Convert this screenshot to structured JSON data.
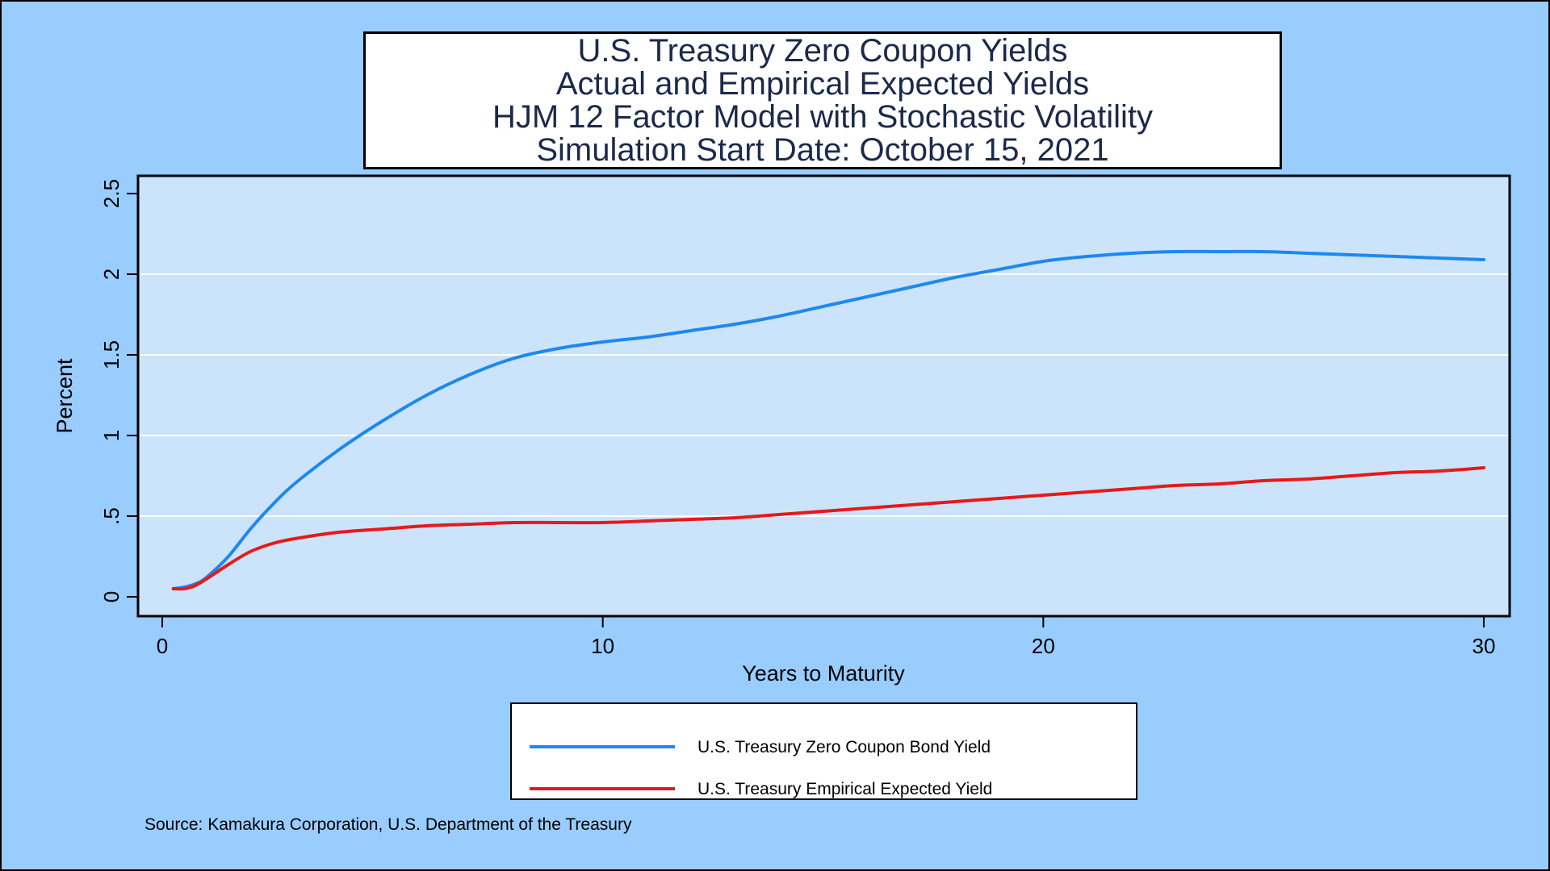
{
  "chart_data": {
    "type": "line",
    "title_lines": [
      "U.S. Treasury Zero Coupon Yields",
      "Actual and Empirical Expected Yields",
      "HJM 12 Factor Model with Stochastic Volatility",
      "Simulation Start Date: October 15, 2021"
    ],
    "xlabel": "Years to Maturity",
    "ylabel": "Percent",
    "xlim": [
      0,
      30
    ],
    "ylim": [
      0,
      2.5
    ],
    "x_ticks": [
      0,
      10,
      20,
      30
    ],
    "x_tick_labels": [
      "0",
      "10",
      "20",
      "30"
    ],
    "y_ticks": [
      0,
      0.5,
      1,
      1.5,
      2,
      2.5
    ],
    "y_tick_labels": [
      "0",
      ".5",
      "1",
      "1.5",
      "2",
      "2.5"
    ],
    "grid": "horizontal",
    "legend_position": "bottom",
    "series": [
      {
        "name": "U.S. Treasury Zero Coupon Bond Yield",
        "color": "#1e88f0",
        "x": [
          0.25,
          0.5,
          0.75,
          1,
          1.5,
          2,
          2.5,
          3,
          4,
          5,
          6,
          7,
          8,
          9,
          10,
          11,
          12,
          13,
          14,
          15,
          16,
          17,
          18,
          19,
          20,
          21,
          22,
          23,
          24,
          25,
          26,
          27,
          28,
          29,
          30
        ],
        "values": [
          0.05,
          0.06,
          0.08,
          0.12,
          0.25,
          0.42,
          0.57,
          0.7,
          0.91,
          1.09,
          1.25,
          1.38,
          1.48,
          1.54,
          1.58,
          1.61,
          1.65,
          1.69,
          1.74,
          1.8,
          1.86,
          1.92,
          1.98,
          2.03,
          2.08,
          2.11,
          2.13,
          2.14,
          2.14,
          2.14,
          2.13,
          2.12,
          2.11,
          2.1,
          2.09
        ]
      },
      {
        "name": "U.S. Treasury Empirical Expected Yield",
        "color": "#e51a1a",
        "x": [
          0.25,
          0.5,
          0.75,
          1,
          1.5,
          2,
          2.5,
          3,
          4,
          5,
          6,
          7,
          8,
          9,
          10,
          11,
          12,
          13,
          14,
          15,
          16,
          17,
          18,
          19,
          20,
          21,
          22,
          23,
          24,
          25,
          26,
          27,
          28,
          29,
          30
        ],
        "values": [
          0.05,
          0.05,
          0.07,
          0.11,
          0.2,
          0.28,
          0.33,
          0.36,
          0.4,
          0.42,
          0.44,
          0.45,
          0.46,
          0.46,
          0.46,
          0.47,
          0.48,
          0.49,
          0.51,
          0.53,
          0.55,
          0.57,
          0.59,
          0.61,
          0.63,
          0.65,
          0.67,
          0.69,
          0.7,
          0.72,
          0.73,
          0.75,
          0.77,
          0.78,
          0.8
        ]
      }
    ],
    "source": "Source: Kamakura Corporation, U.S. Department of the Treasury"
  },
  "colors": {
    "background": "#99ccff",
    "plot_background": "#cce4fb",
    "grid": "#ffffff",
    "title_text": "#1b2a4a"
  }
}
